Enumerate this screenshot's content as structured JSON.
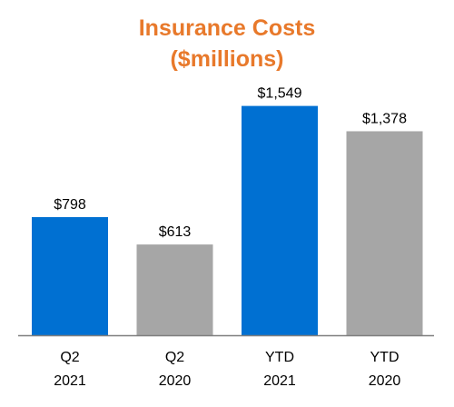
{
  "chart_data": {
    "type": "bar",
    "title_lines": [
      "Insurance Costs",
      "($millions)"
    ],
    "categories": [
      [
        "Q2",
        "2021"
      ],
      [
        "Q2",
        "2020"
      ],
      [
        "YTD",
        "2021"
      ],
      [
        "YTD",
        "2020"
      ]
    ],
    "values": [
      798,
      613,
      1549,
      1378
    ],
    "value_labels": [
      "$798",
      "$613",
      "$1,549",
      "$1,378"
    ],
    "bar_colors": [
      "#0070D2",
      "#A6A6A6",
      "#0070D2",
      "#A6A6A6"
    ],
    "ylim": [
      0,
      1700
    ],
    "grid": false,
    "legend": "none"
  },
  "colors": {
    "title": "#E8792B",
    "axis": "#7F7F7F"
  }
}
